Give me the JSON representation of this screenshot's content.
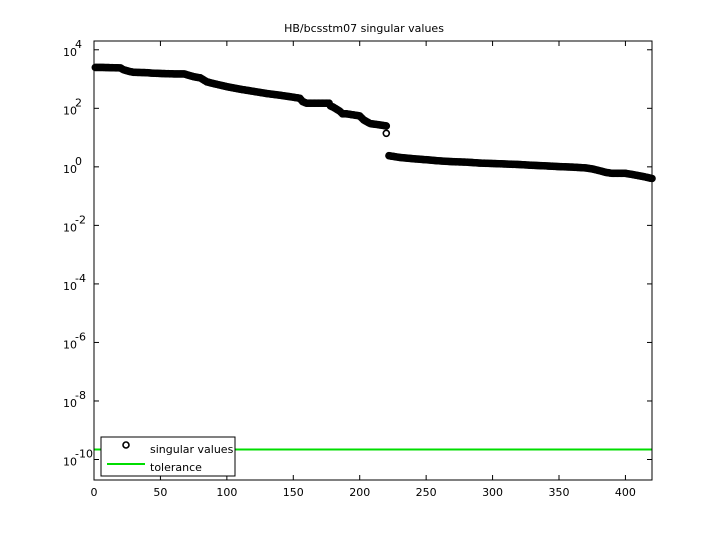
{
  "chart_data": {
    "type": "scatter",
    "title": "HB/bcsstm07 singular values",
    "xlabel": "",
    "ylabel": "",
    "xlim": [
      0,
      420
    ],
    "ylim_log10": [
      -10.7,
      4.3
    ],
    "y_scale": "log",
    "x_ticks": [
      "0",
      "50",
      "100",
      "150",
      "200",
      "250",
      "300",
      "350",
      "400"
    ],
    "x_tick_values": [
      0,
      50,
      100,
      150,
      200,
      250,
      300,
      350,
      400
    ],
    "y_tick_exponents": [
      4,
      2,
      0,
      -2,
      -4,
      -6,
      -8,
      -10
    ],
    "y_tick_base": "10",
    "grid": false,
    "legend_position": "bottom-left",
    "series": [
      {
        "name": "singular values",
        "marker": "circle",
        "color": "#000000",
        "segments": [
          {
            "x": [
              1,
              5,
              20,
              22,
              27,
              30,
              40,
              43,
              50,
              60,
              68,
              70,
              75,
              80,
              85,
              90,
              100,
              110,
              120,
              130,
              140,
              150,
              155,
              157,
              160,
              170,
              177,
              178,
              180,
              185,
              187,
              190,
              200,
              203,
              208,
              213,
              220
            ],
            "y": [
              2500,
              2500,
              2400,
              2100,
              1800,
              1700,
              1650,
              1600,
              1550,
              1500,
              1500,
              1400,
              1200,
              1100,
              800,
              700,
              550,
              450,
              380,
              320,
              280,
              240,
              220,
              170,
              150,
              150,
              150,
              120,
              110,
              80,
              65,
              65,
              55,
              40,
              30,
              28,
              25
            ]
          },
          {
            "x": [
              220
            ],
            "y": [
              14
            ]
          },
          {
            "x": [
              222,
              230,
              240,
              250,
              260,
              270,
              280,
              290,
              300,
              310,
              320,
              330,
              340,
              350,
              360,
              370,
              375,
              380,
              385,
              390,
              400,
              405,
              410,
              415,
              420
            ],
            "y": [
              2.4,
              2.1,
              1.9,
              1.75,
              1.6,
              1.5,
              1.45,
              1.35,
              1.3,
              1.25,
              1.2,
              1.13,
              1.08,
              1.02,
              0.98,
              0.92,
              0.85,
              0.75,
              0.65,
              0.6,
              0.6,
              0.55,
              0.5,
              0.45,
              0.4
            ]
          }
        ]
      },
      {
        "name": "tolerance",
        "marker": "line",
        "color": "#00dd00",
        "y_value": 2.2e-10
      }
    ]
  }
}
